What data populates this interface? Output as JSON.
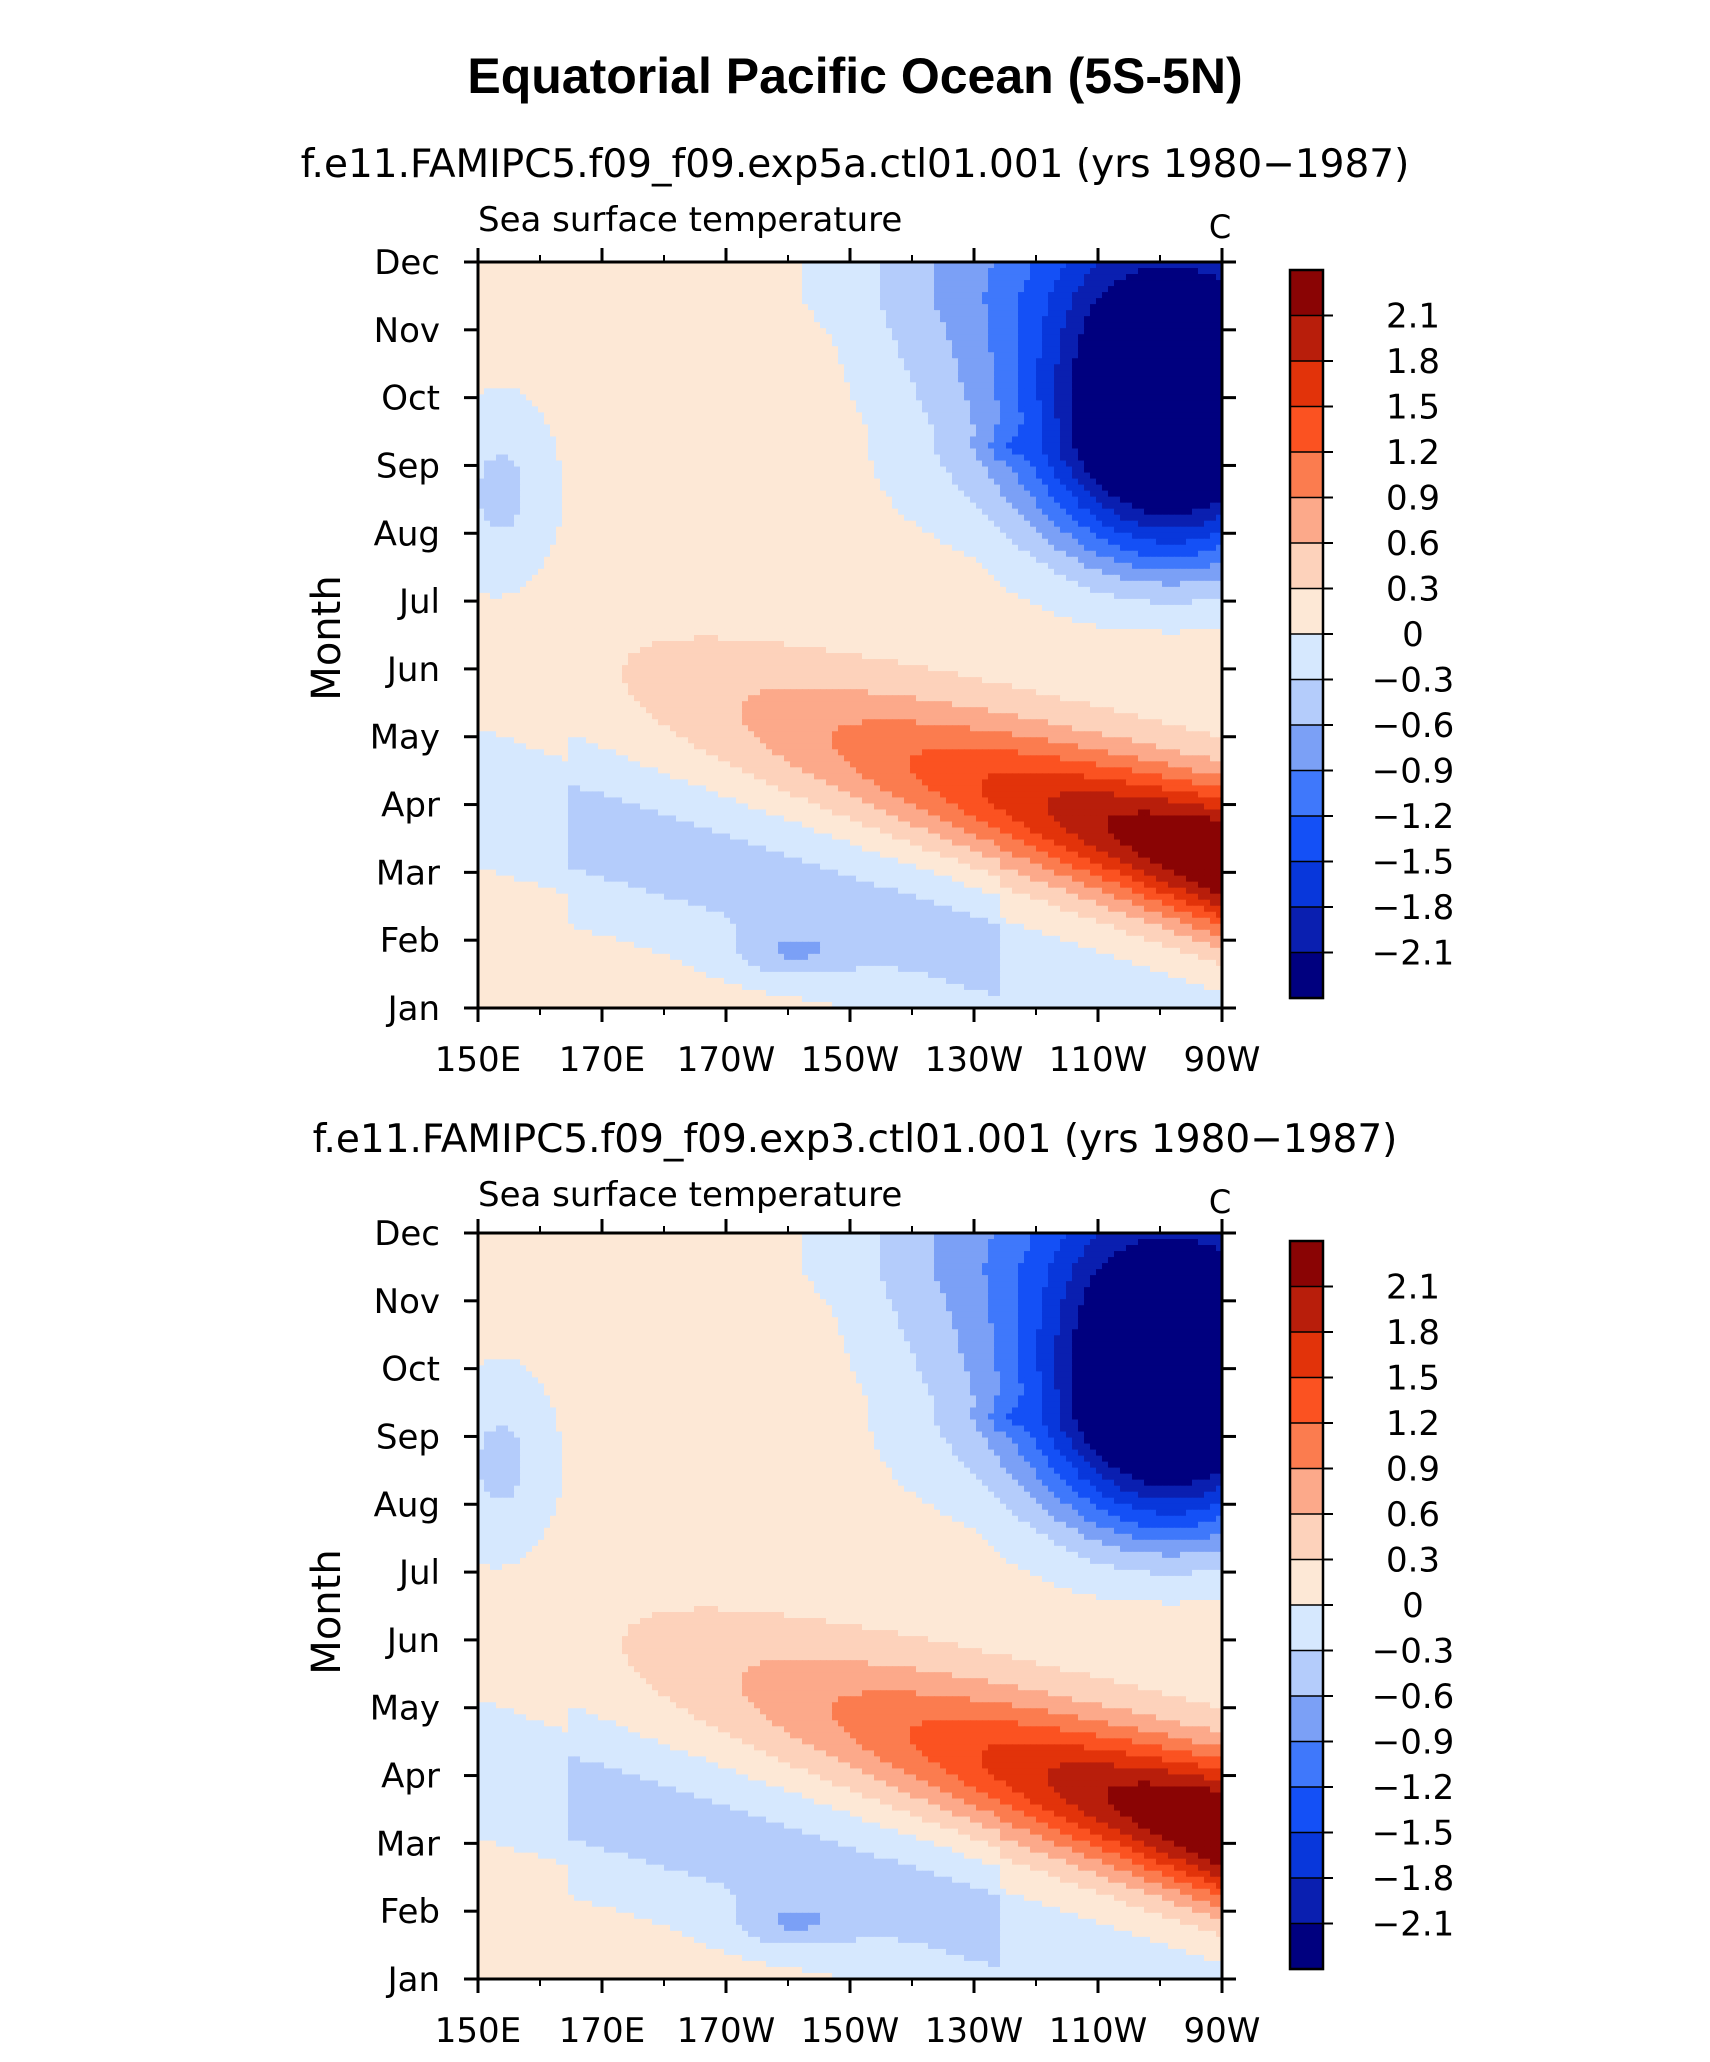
{
  "figure_title": "Equatorial Pacific Ocean (5S-5N)",
  "colors": {
    "levels_palette": [
      "#00007f",
      "#0a1fb0",
      "#0837db",
      "#1450f6",
      "#3f78fb",
      "#7ba0f6",
      "#b4ccfb",
      "#d6e8fe",
      "#fde8d6",
      "#fdd2bb",
      "#fca98a",
      "#fb7c4f",
      "#fb5221",
      "#e2330a",
      "#b81e0b",
      "#8a0404"
    ]
  },
  "chart_data": [
    {
      "type": "heatmap",
      "title": "f.e11.FAMIPC5.f09_f09.exp5a.ctl01.001 (yrs 1980−1987)",
      "subtitle_left": "Sea surface temperature",
      "subtitle_right": "C",
      "ylabel": "Month",
      "xlabel": "",
      "x_ticks": [
        "150E",
        "170E",
        "170W",
        "150W",
        "130W",
        "110W",
        "90W"
      ],
      "y_ticks": [
        "Jan",
        "Feb",
        "Mar",
        "Apr",
        "May",
        "Jun",
        "Jul",
        "Aug",
        "Sep",
        "Oct",
        "Nov",
        "Dec"
      ],
      "xlim": [
        "150E",
        "90W"
      ],
      "ylim": [
        "Jan",
        "Dec"
      ],
      "colorbar_labels": [
        "2.1",
        "1.8",
        "1.5",
        "1.2",
        "0.9",
        "0.6",
        "0.3",
        "0",
        "−0.3",
        "−0.6",
        "−0.9",
        "−1.2",
        "−1.5",
        "−1.8",
        "−2.1"
      ],
      "levels": [
        -2.1,
        -1.8,
        -1.5,
        -1.2,
        -0.9,
        -0.6,
        -0.3,
        0,
        0.3,
        0.6,
        0.9,
        1.2,
        1.5,
        1.8,
        2.1
      ]
    },
    {
      "type": "heatmap",
      "title": "f.e11.FAMIPC5.f09_f09.exp3.ctl01.001 (yrs 1980−1987)",
      "subtitle_left": "Sea surface temperature",
      "subtitle_right": "C",
      "ylabel": "Month",
      "xlabel": "",
      "x_ticks": [
        "150E",
        "170E",
        "170W",
        "150W",
        "130W",
        "110W",
        "90W"
      ],
      "y_ticks": [
        "Jan",
        "Feb",
        "Mar",
        "Apr",
        "May",
        "Jun",
        "Jul",
        "Aug",
        "Sep",
        "Oct",
        "Nov",
        "Dec"
      ],
      "xlim": [
        "150E",
        "90W"
      ],
      "ylim": [
        "Jan",
        "Dec"
      ],
      "colorbar_labels": [
        "2.1",
        "1.8",
        "1.5",
        "1.2",
        "0.9",
        "0.6",
        "0.3",
        "0",
        "−0.3",
        "−0.6",
        "−0.9",
        "−1.2",
        "−1.5",
        "−1.8",
        "−2.1"
      ],
      "levels": [
        -2.1,
        -1.8,
        -1.5,
        -1.2,
        -0.9,
        -0.6,
        -0.3,
        0,
        0.3,
        0.6,
        0.9,
        1.2,
        1.5,
        1.8,
        2.1
      ]
    }
  ]
}
